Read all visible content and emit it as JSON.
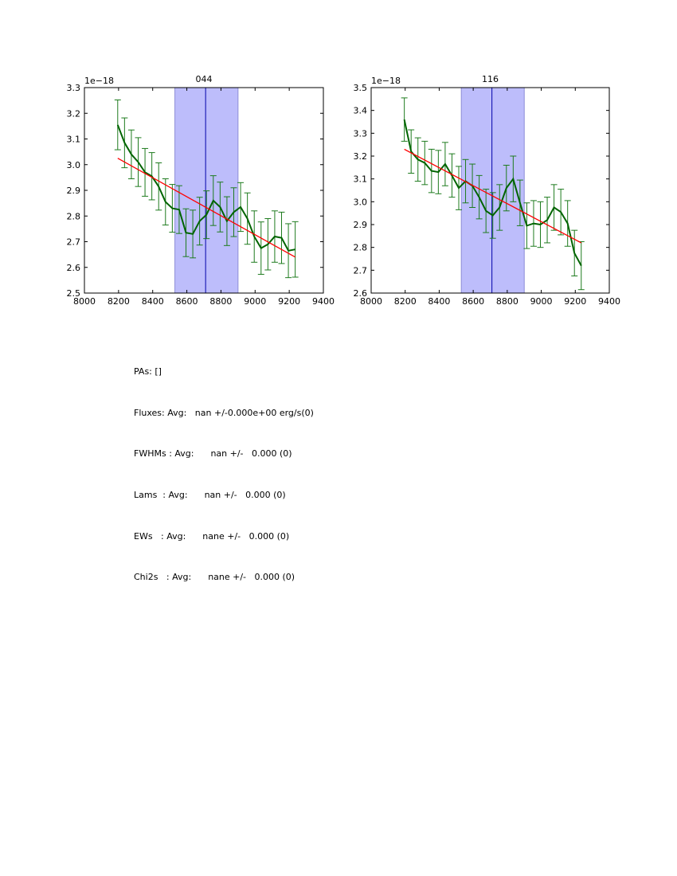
{
  "chart_data": [
    {
      "type": "line",
      "title": "044",
      "xlim": [
        8000,
        9400
      ],
      "ylim": [
        2.5,
        3.3
      ],
      "x_ticks": [
        "8000",
        "8200",
        "8400",
        "8600",
        "8800",
        "9000",
        "9200",
        "9400"
      ],
      "y_ticks": [
        "2.5",
        "2.6",
        "2.7",
        "2.8",
        "2.9",
        "3.0",
        "3.1",
        "3.2",
        "3.3"
      ],
      "y_tick_values": [
        2.5,
        2.6,
        2.7,
        2.8,
        2.9,
        3.0,
        3.1,
        3.2,
        3.3
      ],
      "x_tick_values": [
        8000,
        8200,
        8400,
        8600,
        8800,
        9000,
        9200,
        9400
      ],
      "offset_label": "1e−18",
      "band": [
        8530,
        8900
      ],
      "vline": 8710,
      "x": [
        8195,
        8235,
        8275,
        8315,
        8355,
        8395,
        8435,
        8475,
        8515,
        8555,
        8595,
        8635,
        8675,
        8715,
        8755,
        8795,
        8835,
        8875,
        8915,
        8955,
        8995,
        9035,
        9075,
        9115,
        9155,
        9195,
        9235
      ],
      "y": [
        3.155,
        3.085,
        3.04,
        3.01,
        2.97,
        2.955,
        2.915,
        2.855,
        2.83,
        2.825,
        2.735,
        2.73,
        2.78,
        2.805,
        2.86,
        2.835,
        2.78,
        2.815,
        2.835,
        2.79,
        2.72,
        2.675,
        2.69,
        2.72,
        2.715,
        2.665,
        2.67
      ],
      "err": [
        0.097,
        0.097,
        0.095,
        0.095,
        0.093,
        0.092,
        0.092,
        0.09,
        0.093,
        0.093,
        0.093,
        0.093,
        0.093,
        0.093,
        0.097,
        0.097,
        0.095,
        0.095,
        0.095,
        0.1,
        0.1,
        0.102,
        0.1,
        0.1,
        0.1,
        0.105,
        0.108
      ],
      "fit": {
        "x": [
          8195,
          9235
        ],
        "y": [
          3.025,
          2.64
        ]
      },
      "colors": {
        "data": "#006400",
        "errorbar": "#1e7b1e",
        "fit": "#ff0000",
        "band": "#bdbdfb",
        "band_edge": "#8c8cd8",
        "vline": "#0000aa"
      }
    },
    {
      "type": "line",
      "title": "116",
      "xlim": [
        8000,
        9400
      ],
      "ylim": [
        2.6,
        3.5
      ],
      "x_ticks": [
        "8000",
        "8200",
        "8400",
        "8600",
        "8800",
        "9000",
        "9200",
        "9400"
      ],
      "y_ticks": [
        "2.6",
        "2.7",
        "2.8",
        "2.9",
        "3.0",
        "3.1",
        "3.2",
        "3.3",
        "3.4",
        "3.5"
      ],
      "y_tick_values": [
        2.6,
        2.7,
        2.8,
        2.9,
        3.0,
        3.1,
        3.2,
        3.3,
        3.4,
        3.5
      ],
      "x_tick_values": [
        8000,
        8200,
        8400,
        8600,
        8800,
        9000,
        9200,
        9400
      ],
      "offset_label": "1e−18",
      "band": [
        8530,
        8900
      ],
      "vline": 8710,
      "x": [
        8195,
        8235,
        8275,
        8315,
        8355,
        8395,
        8435,
        8475,
        8515,
        8555,
        8595,
        8635,
        8675,
        8715,
        8755,
        8795,
        8835,
        8875,
        8915,
        8955,
        8995,
        9035,
        9075,
        9115,
        9155,
        9195,
        9235
      ],
      "y": [
        3.36,
        3.22,
        3.185,
        3.17,
        3.135,
        3.13,
        3.165,
        3.115,
        3.06,
        3.09,
        3.07,
        3.02,
        2.96,
        2.94,
        2.975,
        3.06,
        3.1,
        2.995,
        2.895,
        2.905,
        2.9,
        2.92,
        2.975,
        2.955,
        2.905,
        2.775,
        2.72
      ],
      "err": [
        0.095,
        0.095,
        0.095,
        0.095,
        0.095,
        0.095,
        0.095,
        0.095,
        0.095,
        0.095,
        0.095,
        0.095,
        0.095,
        0.1,
        0.1,
        0.1,
        0.1,
        0.1,
        0.1,
        0.1,
        0.1,
        0.1,
        0.1,
        0.1,
        0.1,
        0.1,
        0.105
      ],
      "fit": {
        "x": [
          8195,
          9235
        ],
        "y": [
          3.23,
          2.82
        ]
      },
      "colors": {
        "data": "#006400",
        "errorbar": "#1e7b1e",
        "fit": "#ff0000",
        "band": "#bdbdfb",
        "band_edge": "#8c8cd8",
        "vline": "#0000aa"
      }
    }
  ],
  "stats": {
    "pas": "PAs: []",
    "fluxes": "Fluxes: Avg:   nan +/-0.000e+00 erg/s(0)",
    "fwhms": "FWHMs : Avg:      nan +/-   0.000 (0)",
    "lams": "Lams  : Avg:      nan +/-   0.000 (0)",
    "ews": "EWs   : Avg:      nane +/-   0.000 (0)",
    "chi2s": "Chi2s   : Avg:      nane +/-   0.000 (0)"
  }
}
